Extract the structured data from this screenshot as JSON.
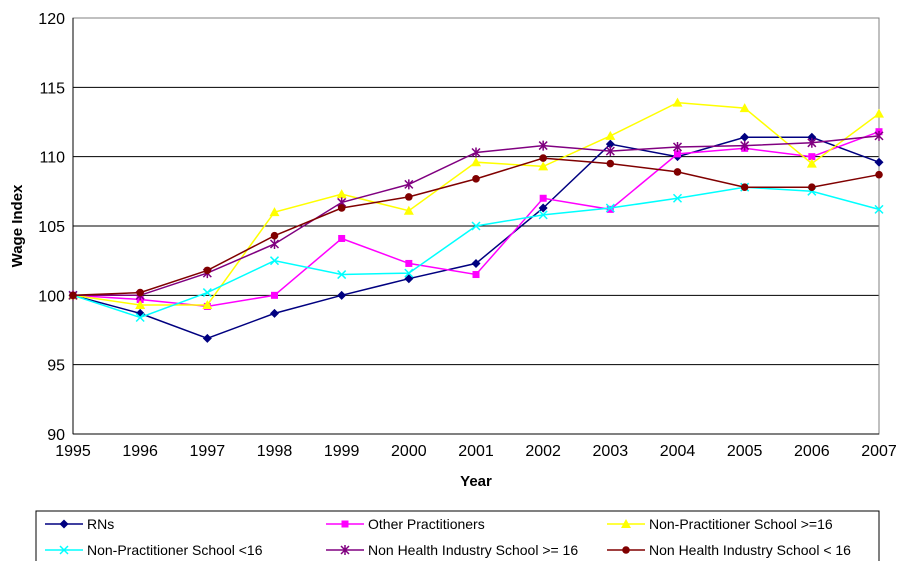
{
  "chart_data": {
    "type": "line",
    "title": "",
    "xlabel": "Year",
    "ylabel": "Wage Index",
    "x": [
      "1995",
      "1996",
      "1997",
      "1998",
      "1999",
      "2000",
      "2001",
      "2002",
      "2003",
      "2004",
      "2005",
      "2006",
      "2007"
    ],
    "ylim": [
      90,
      120
    ],
    "yticks": [
      "90",
      "95",
      "100",
      "105",
      "110",
      "115",
      "120"
    ],
    "grid": "horizontal",
    "legend_position": "bottom",
    "series": [
      {
        "name": "RNs",
        "color": "#000080",
        "marker": "diamond",
        "values": [
          100,
          98.7,
          96.9,
          98.7,
          100.0,
          101.2,
          102.3,
          106.3,
          110.9,
          110.0,
          111.4,
          111.4,
          109.6
        ]
      },
      {
        "name": "Other Practitioners",
        "color": "#FF00FF",
        "marker": "square",
        "values": [
          100,
          99.7,
          99.2,
          100.0,
          104.1,
          102.3,
          101.5,
          107.0,
          106.2,
          110.2,
          110.6,
          110.0,
          111.8
        ]
      },
      {
        "name": "Non-Practitioner School >=16",
        "color": "#FFFF00",
        "marker": "triangle",
        "values": [
          100,
          99.3,
          99.3,
          106.0,
          107.3,
          106.1,
          109.6,
          109.3,
          111.5,
          113.9,
          113.5,
          109.5,
          113.1
        ]
      },
      {
        "name": "Non-Practitioner School <16",
        "color": "#00FFFF",
        "marker": "x",
        "values": [
          100,
          98.4,
          100.2,
          102.5,
          101.5,
          101.6,
          105.0,
          105.8,
          106.3,
          107.0,
          107.8,
          107.5,
          106.2
        ]
      },
      {
        "name": "Non Health Industry School >= 16",
        "color": "#800080",
        "marker": "star",
        "values": [
          100,
          100.0,
          101.6,
          103.7,
          106.7,
          108.0,
          110.3,
          110.8,
          110.4,
          110.7,
          110.8,
          111.0,
          111.5
        ]
      },
      {
        "name": "Non Health Industry School < 16",
        "color": "#800000",
        "marker": "circle",
        "values": [
          100,
          100.2,
          101.8,
          104.3,
          106.3,
          107.1,
          108.4,
          109.9,
          109.5,
          108.9,
          107.8,
          107.8,
          108.7
        ]
      }
    ]
  }
}
